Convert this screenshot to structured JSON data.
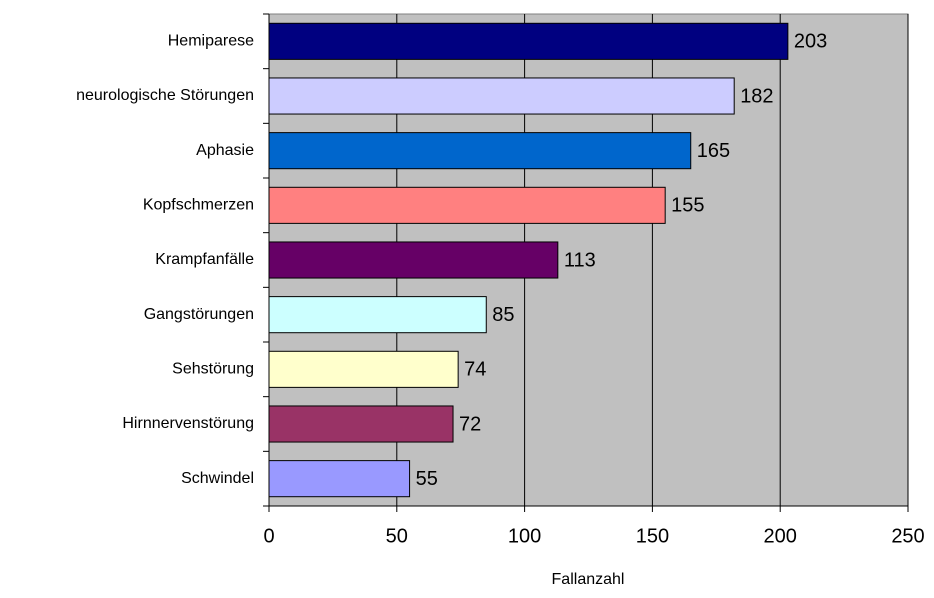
{
  "chart_data": {
    "type": "barh",
    "x_label": "Fallanzahl",
    "categories": [
      "Hemiparese",
      "neurologische Störungen",
      "Aphasie",
      "Kopfschmerzen",
      "Krampfanfälle",
      "Gangstörungen",
      "Sehstörung",
      "Hirnnervenstörung",
      "Schwindel"
    ],
    "values": [
      203,
      182,
      165,
      155,
      113,
      85,
      74,
      72,
      55
    ],
    "colors": [
      "#000080",
      "#ccccff",
      "#0066cc",
      "#ff8080",
      "#660066",
      "#ccffff",
      "#ffffcc",
      "#993366",
      "#9999ff"
    ],
    "xlim": [
      0,
      250
    ],
    "xticks": [
      0,
      50,
      100,
      150,
      200,
      250
    ],
    "grid": true
  }
}
